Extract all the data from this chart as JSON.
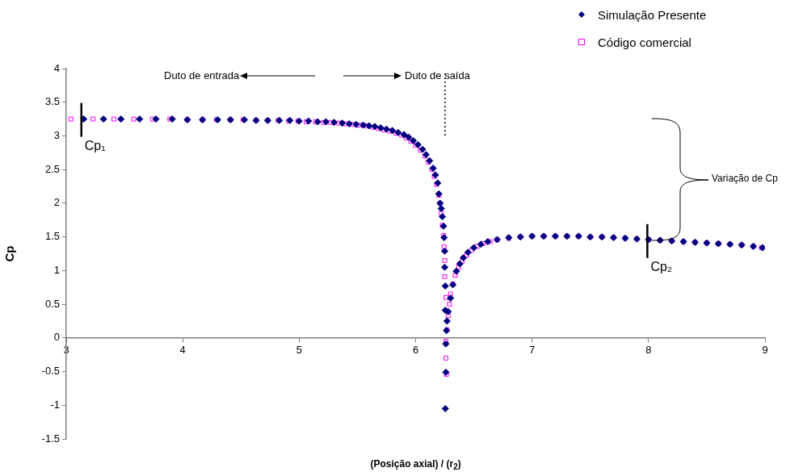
{
  "chart_data": {
    "type": "scatter",
    "xlabel": "(Posição axial) / (r$_{2}$)",
    "ylabel": "Cp",
    "xlim": [
      3,
      9
    ],
    "xticks": [
      3,
      4,
      5,
      6,
      7,
      8,
      9
    ],
    "ylim": [
      -1.5,
      4
    ],
    "yticks": [
      -1.5,
      -1,
      -0.5,
      0,
      0.5,
      1,
      1.5,
      2,
      2.5,
      3,
      3.5,
      4
    ],
    "grid": false,
    "legend": "top right",
    "series": [
      {
        "name": "Simulação Presente",
        "color": "#000080",
        "marker": "diamond",
        "x": [
          3.15,
          3.32,
          3.47,
          3.63,
          3.77,
          3.91,
          4.04,
          4.17,
          4.3,
          4.41,
          4.53,
          4.63,
          4.73,
          4.83,
          4.92,
          5.0,
          5.08,
          5.16,
          5.23,
          5.3,
          5.37,
          5.43,
          5.49,
          5.55,
          5.6,
          5.65,
          5.7,
          5.75,
          5.8,
          5.85,
          5.9,
          5.94,
          5.98,
          6.02,
          6.06,
          6.09,
          6.12,
          6.15,
          6.17,
          6.19,
          6.2,
          6.21,
          6.22,
          6.23,
          6.24,
          6.245,
          6.25,
          6.25,
          6.255,
          6.255,
          6.26,
          6.26,
          6.255,
          6.265,
          6.27,
          6.28,
          6.3,
          6.32,
          6.35,
          6.38,
          6.41,
          6.45,
          6.5,
          6.56,
          6.62,
          6.7,
          6.8,
          6.9,
          7.0,
          7.1,
          7.2,
          7.3,
          7.4,
          7.5,
          7.6,
          7.7,
          7.8,
          7.9,
          8.0,
          8.1,
          8.2,
          8.3,
          8.4,
          8.5,
          8.6,
          8.7,
          8.8,
          8.9,
          8.98
        ],
        "values": [
          3.25,
          3.25,
          3.25,
          3.25,
          3.25,
          3.25,
          3.24,
          3.24,
          3.24,
          3.24,
          3.24,
          3.23,
          3.23,
          3.23,
          3.23,
          3.22,
          3.22,
          3.21,
          3.21,
          3.2,
          3.19,
          3.18,
          3.17,
          3.16,
          3.15,
          3.14,
          3.12,
          3.1,
          3.08,
          3.05,
          3.02,
          2.98,
          2.93,
          2.87,
          2.8,
          2.72,
          2.63,
          2.52,
          2.42,
          2.3,
          2.14,
          2.0,
          1.92,
          1.8,
          1.66,
          1.49,
          1.29,
          1.05,
          0.77,
          0.41,
          -0.09,
          -0.51,
          -1.05,
          0.11,
          0.25,
          0.39,
          0.59,
          0.79,
          0.99,
          1.1,
          1.19,
          1.27,
          1.34,
          1.39,
          1.43,
          1.46,
          1.49,
          1.5,
          1.51,
          1.51,
          1.51,
          1.51,
          1.51,
          1.5,
          1.5,
          1.49,
          1.48,
          1.47,
          1.46,
          1.45,
          1.44,
          1.43,
          1.42,
          1.41,
          1.4,
          1.39,
          1.38,
          1.36,
          1.34
        ]
      },
      {
        "name": "Código comercial",
        "color": "#ff00ff",
        "marker": "square",
        "x": [
          3.04,
          3.23,
          3.41,
          3.58,
          3.74,
          3.89,
          4.04,
          4.17,
          4.29,
          4.41,
          4.52,
          4.63,
          4.73,
          4.82,
          4.91,
          4.99,
          5.06,
          5.14,
          5.21,
          5.27,
          5.34,
          5.4,
          5.46,
          5.52,
          5.58,
          5.63,
          5.68,
          5.73,
          5.78,
          5.83,
          5.88,
          5.92,
          5.96,
          6.0,
          6.04,
          6.08,
          6.11,
          6.14,
          6.16,
          6.18,
          6.2,
          6.21,
          6.22,
          6.23,
          6.24,
          6.245,
          6.25,
          6.25,
          6.26,
          6.26,
          6.26,
          6.265,
          6.27,
          6.28,
          6.29,
          6.3,
          6.32,
          6.34,
          6.37,
          6.4,
          6.44,
          6.48,
          6.53,
          6.58,
          6.64,
          6.7,
          6.8,
          6.9,
          7.0,
          7.1,
          7.2,
          7.3,
          7.4,
          7.5,
          7.6,
          7.7,
          7.8,
          7.9,
          8.0,
          8.1,
          8.2,
          8.3,
          8.4,
          8.5,
          8.6,
          8.7,
          8.8,
          8.9,
          8.97
        ],
        "values": [
          3.25,
          3.25,
          3.25,
          3.25,
          3.25,
          3.25,
          3.24,
          3.24,
          3.24,
          3.24,
          3.24,
          3.23,
          3.23,
          3.23,
          3.22,
          3.22,
          3.21,
          3.21,
          3.2,
          3.2,
          3.19,
          3.18,
          3.17,
          3.16,
          3.15,
          3.13,
          3.11,
          3.09,
          3.07,
          3.04,
          3.01,
          2.97,
          2.92,
          2.86,
          2.79,
          2.7,
          2.61,
          2.5,
          2.4,
          2.28,
          2.12,
          2.0,
          1.85,
          1.67,
          1.52,
          1.35,
          1.15,
          0.91,
          0.6,
          -0.05,
          -0.3,
          -0.54,
          0.12,
          0.33,
          0.5,
          0.65,
          0.8,
          0.93,
          1.05,
          1.14,
          1.23,
          1.3,
          1.36,
          1.4,
          1.43,
          1.46,
          1.48,
          1.5,
          1.51,
          1.51,
          1.51,
          1.51,
          1.51,
          1.5,
          1.5,
          1.49,
          1.48,
          1.47,
          1.46,
          1.45,
          1.44,
          1.43,
          1.42,
          1.41,
          1.4,
          1.39,
          1.38,
          1.36,
          1.34
        ]
      }
    ],
    "annotations": [
      "Duto de entrada",
      "Duto de saída",
      {
        "text": "Cp₁",
        "x": 3.13,
        "y": 3.25
      },
      {
        "text": "Cp₂",
        "x": 7.99,
        "y": 1.45
      },
      "Variação de Cp"
    ]
  }
}
